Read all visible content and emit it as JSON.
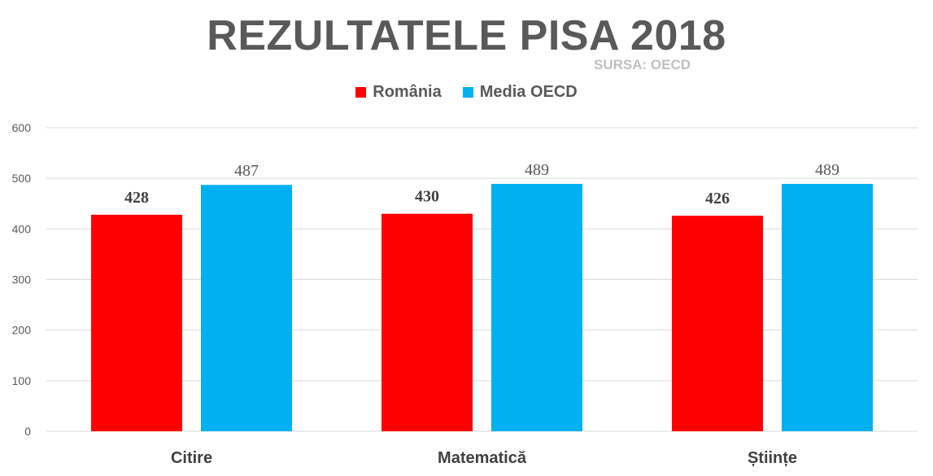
{
  "chart_data": {
    "type": "bar",
    "title": "REZULTATELE PISA 2018",
    "subtitle": "SURSA: OECD",
    "categories": [
      "Citire",
      "Matematică",
      "Științe"
    ],
    "series": [
      {
        "name": "România",
        "values": [
          428,
          430,
          426
        ],
        "color": "#ff0000"
      },
      {
        "name": "Media OECD",
        "values": [
          487,
          489,
          489
        ],
        "color": "#00b0f0"
      }
    ],
    "ylim": [
      0,
      600
    ],
    "yticks": [
      0,
      100,
      200,
      300,
      400,
      500,
      600
    ],
    "grid": true,
    "legend": "top-center"
  }
}
